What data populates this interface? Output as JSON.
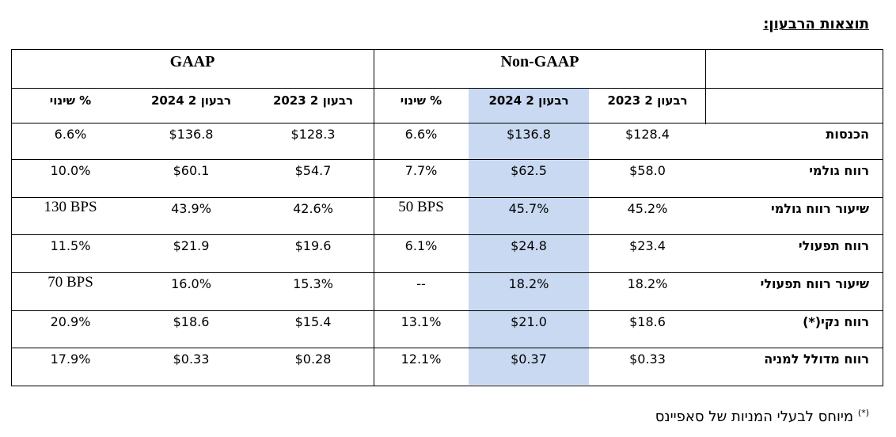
{
  "title": "תוצאות הרבעון:",
  "groups": {
    "gaap": "GAAP",
    "non_gaap": "Non-GAAP"
  },
  "column_headers": {
    "gaap_change": "% שינוי",
    "gaap_q2_2024": "רבעון 2 2024",
    "gaap_q2_2023": "רבעון 2 2023",
    "ng_change": "% שינוי",
    "ng_q2_2024": "רבעון 2 2024",
    "ng_q2_2023": "רבעון 2 2023"
  },
  "rows": [
    {
      "label": "הכנסות",
      "gaap_change": "6.6%",
      "gaap_2024": "$136.8",
      "gaap_2023": "$128.3",
      "ng_change": "6.6%",
      "ng_2024": "$136.8",
      "ng_2023": "$128.4"
    },
    {
      "label": "רווח גולמי",
      "gaap_change": "10.0%",
      "gaap_2024": "$60.1",
      "gaap_2023": "$54.7",
      "ng_change": "7.7%",
      "ng_2024": "$62.5",
      "ng_2023": "$58.0"
    },
    {
      "label": "שיעור רווח גולמי",
      "gaap_change": "130 BPS",
      "gaap_2024": "43.9%",
      "gaap_2023": "42.6%",
      "ng_change": "50 BPS",
      "ng_2024": "45.7%",
      "ng_2023": "45.2%"
    },
    {
      "label": "רווח תפעולי",
      "gaap_change": "11.5%",
      "gaap_2024": "$21.9",
      "gaap_2023": "$19.6",
      "ng_change": "6.1%",
      "ng_2024": "$24.8",
      "ng_2023": "$23.4"
    },
    {
      "label": "שיעור רווח תפעולי",
      "gaap_change": "70 BPS",
      "gaap_2024": "16.0%",
      "gaap_2023": "15.3%",
      "ng_change": "--",
      "ng_2024": "18.2%",
      "ng_2023": "18.2%"
    },
    {
      "label": "רווח נקי(*)",
      "gaap_change": "20.9%",
      "gaap_2024": "$18.6",
      "gaap_2023": "$15.4",
      "ng_change": "13.1%",
      "ng_2024": "$21.0",
      "ng_2023": "$18.6"
    },
    {
      "label": "רווח מדולל למניה",
      "gaap_change": "17.9%",
      "gaap_2024": "$0.33",
      "gaap_2023": "$0.28",
      "ng_change": "12.1%",
      "ng_2024": "$0.37",
      "ng_2023": "$0.33"
    }
  ],
  "footnote": {
    "marker": "(*)",
    "text": "מיוחס לבעלי המניות של סאפיינס"
  },
  "colors": {
    "highlight": "#c9d9f1"
  }
}
